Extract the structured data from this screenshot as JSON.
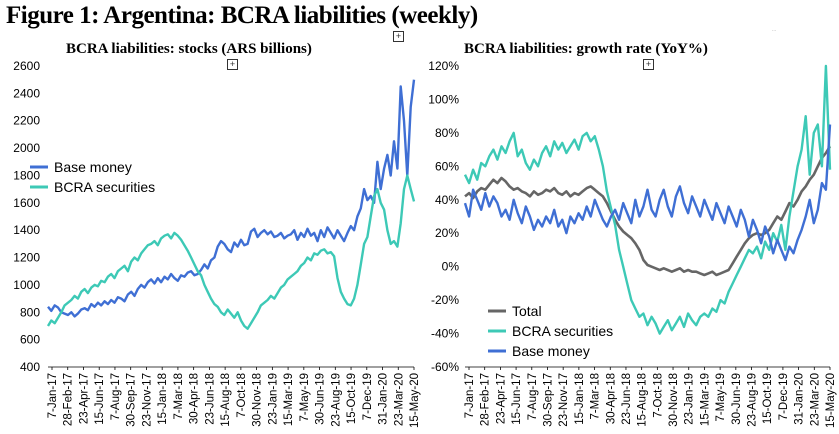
{
  "figure_title": "Figure 1: Argentina: BCRA liabilities (weekly)",
  "colors": {
    "base": "#3f6fd4",
    "securities": "#3dc9b6",
    "total": "#666666"
  },
  "icons": [
    "plus-square-icon"
  ],
  "chart_data": [
    {
      "type": "line",
      "title": "BCRA liabilities: stocks (ARS billions)",
      "ylim": [
        400,
        2600
      ],
      "yticks": [
        400,
        600,
        800,
        1000,
        1200,
        1400,
        1600,
        1800,
        2000,
        2200,
        2400,
        2600
      ],
      "ytick_labels": [
        "400",
        "600",
        "800",
        "1000",
        "1200",
        "1400",
        "1600",
        "1800",
        "2000",
        "2200",
        "2400",
        "2600"
      ],
      "x_labels": [
        "7-Jan-17",
        "28-Feb-17",
        "23-Apr-17",
        "15-Jun-17",
        "7-Aug-17",
        "30-Sep-17",
        "23-Nov-17",
        "15-Jan-18",
        "7-Mar-18",
        "30-Apr-18",
        "23-Jun-18",
        "15-Aug-18",
        "7-Oct-18",
        "30-Nov-18",
        "23-Jan-19",
        "15-Mar-19",
        "7-May-19",
        "30-Jun-19",
        "23-Aug-19",
        "15-Oct-19",
        "7-Dec-19",
        "31-Jan-20",
        "23-Mar-20",
        "15-May-20"
      ],
      "legend_position": "middle-left",
      "series": [
        {
          "name": "Base money",
          "color_key": "base",
          "values": [
            840,
            810,
            850,
            835,
            800,
            790,
            780,
            800,
            770,
            790,
            820,
            830,
            815,
            860,
            840,
            870,
            850,
            880,
            860,
            890,
            870,
            910,
            900,
            880,
            930,
            950,
            920,
            970,
            1000,
            980,
            1020,
            1040,
            1010,
            1050,
            1020,
            1060,
            1040,
            1080,
            1050,
            1030,
            1070,
            1060,
            1090,
            1100,
            1070,
            1080,
            1110,
            1150,
            1120,
            1180,
            1200,
            1280,
            1320,
            1300,
            1260,
            1240,
            1310,
            1280,
            1330,
            1290,
            1300,
            1390,
            1410,
            1350,
            1380,
            1400,
            1370,
            1390,
            1350,
            1360,
            1380,
            1340,
            1360,
            1370,
            1400,
            1330,
            1380,
            1350,
            1410,
            1360,
            1380,
            1320,
            1400,
            1350,
            1420,
            1380,
            1340,
            1400,
            1360,
            1320,
            1380,
            1430,
            1400,
            1500,
            1560,
            1700,
            1620,
            1650,
            1600,
            1900,
            1700,
            1850,
            1950,
            1800,
            2050,
            1850,
            2450,
            2200,
            1800,
            2300,
            2500
          ]
        },
        {
          "name": "BCRA securities",
          "color_key": "securities",
          "values": [
            700,
            740,
            720,
            760,
            800,
            850,
            870,
            890,
            920,
            900,
            950,
            970,
            940,
            980,
            1000,
            990,
            1030,
            1020,
            1060,
            1080,
            1050,
            1100,
            1120,
            1140,
            1100,
            1170,
            1200,
            1180,
            1230,
            1260,
            1290,
            1300,
            1320,
            1290,
            1340,
            1360,
            1370,
            1340,
            1380,
            1360,
            1330,
            1290,
            1250,
            1200,
            1150,
            1100,
            1070,
            1000,
            950,
            900,
            860,
            840,
            800,
            780,
            820,
            790,
            760,
            800,
            740,
            700,
            680,
            720,
            760,
            800,
            850,
            870,
            890,
            920,
            900,
            940,
            980,
            1000,
            1040,
            1060,
            1080,
            1100,
            1140,
            1160,
            1200,
            1180,
            1230,
            1220,
            1250,
            1260,
            1230,
            1240,
            1210,
            1050,
            950,
            900,
            860,
            850,
            900,
            1000,
            1150,
            1300,
            1350,
            1500,
            1650,
            1700,
            1600,
            1550,
            1400,
            1300,
            1320,
            1280,
            1450,
            1700,
            1800,
            1700,
            1610
          ]
        }
      ]
    },
    {
      "type": "line",
      "title": "BCRA liabilities: growth rate (YoY%)",
      "ylim": [
        -60,
        120
      ],
      "yticks": [
        -60,
        -40,
        -20,
        0,
        20,
        40,
        60,
        80,
        100,
        120
      ],
      "ytick_labels": [
        "-60%",
        "-40%",
        "-20%",
        "0%",
        "20%",
        "40%",
        "60%",
        "80%",
        "100%",
        "120%"
      ],
      "x_labels": [
        "7-Jan-17",
        "28-Feb-17",
        "23-Apr-17",
        "15-Jun-17",
        "7-Aug-17",
        "30-Sep-17",
        "23-Nov-17",
        "15-Jan-18",
        "7-Mar-18",
        "30-Apr-18",
        "23-Jun-18",
        "15-Aug-18",
        "7-Oct-18",
        "30-Nov-18",
        "23-Jan-19",
        "15-Mar-19",
        "7-May-19",
        "30-Jun-19",
        "23-Aug-19",
        "15-Oct-19",
        "7-Dec-19",
        "31-Jan-20",
        "23-Mar-20",
        "15-May-20"
      ],
      "legend_position": "bottom-left",
      "series": [
        {
          "name": "Total",
          "color_key": "total",
          "values": [
            42,
            44,
            41,
            45,
            47,
            46,
            49,
            52,
            50,
            53,
            51,
            48,
            46,
            47,
            45,
            44,
            42,
            45,
            43,
            44,
            46,
            45,
            47,
            44,
            43,
            45,
            42,
            44,
            43,
            45,
            47,
            48,
            46,
            44,
            42,
            38,
            33,
            28,
            24,
            21,
            19,
            17,
            14,
            10,
            4,
            1,
            0,
            -1,
            -2,
            -1,
            -2,
            -3,
            -2,
            -1,
            -3,
            -2,
            -3,
            -3,
            -4,
            -5,
            -4,
            -3,
            -5,
            -4,
            -3,
            -2,
            2,
            6,
            10,
            14,
            17,
            19,
            20,
            19,
            20,
            22,
            26,
            30,
            28,
            33,
            38,
            36,
            40,
            45,
            48,
            52,
            55,
            60,
            65,
            68,
            72
          ]
        },
        {
          "name": "BCRA securities",
          "color_key": "securities",
          "values": [
            55,
            50,
            58,
            52,
            62,
            60,
            66,
            70,
            64,
            72,
            68,
            75,
            80,
            66,
            70,
            62,
            58,
            64,
            60,
            68,
            72,
            66,
            75,
            70,
            74,
            68,
            72,
            76,
            70,
            78,
            80,
            75,
            78,
            70,
            60,
            45,
            35,
            25,
            10,
            0,
            -10,
            -20,
            -25,
            -30,
            -28,
            -35,
            -30,
            -34,
            -40,
            -36,
            -32,
            -38,
            -34,
            -30,
            -36,
            -28,
            -32,
            -35,
            -30,
            -28,
            -30,
            -25,
            -27,
            -20,
            -22,
            -15,
            -10,
            -5,
            0,
            5,
            10,
            8,
            12,
            5,
            15,
            10,
            20,
            15,
            25,
            10,
            30,
            45,
            60,
            70,
            90,
            55,
            80,
            85,
            60,
            120,
            58
          ]
        },
        {
          "name": "Base money",
          "color_key": "base",
          "values": [
            38,
            30,
            46,
            40,
            34,
            44,
            36,
            42,
            38,
            30,
            34,
            28,
            40,
            32,
            26,
            36,
            30,
            22,
            28,
            24,
            30,
            26,
            34,
            24,
            28,
            20,
            30,
            26,
            32,
            28,
            36,
            30,
            40,
            34,
            28,
            24,
            30,
            34,
            28,
            38,
            32,
            26,
            40,
            30,
            36,
            46,
            34,
            30,
            40,
            46,
            36,
            30,
            42,
            48,
            38,
            32,
            42,
            36,
            30,
            40,
            34,
            28,
            38,
            32,
            26,
            36,
            30,
            24,
            34,
            28,
            18,
            28,
            22,
            14,
            24,
            18,
            8,
            16,
            10,
            4,
            12,
            8,
            16,
            22,
            30,
            40,
            26,
            34,
            50,
            46,
            85
          ]
        }
      ]
    }
  ]
}
